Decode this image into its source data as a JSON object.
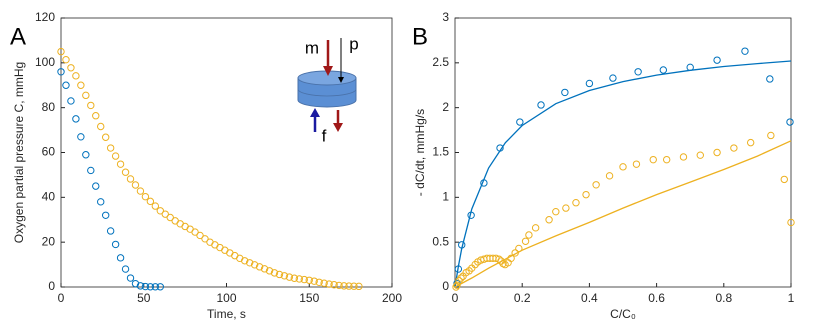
{
  "chart_data": [
    {
      "type": "scatter",
      "panel_label": "A",
      "x_label": "Time, s",
      "y_label": "Oxygen partial pressure C, mmHg",
      "annotations": [
        "m",
        "p",
        "f"
      ],
      "xlim": [
        0,
        200
      ],
      "xticks": [
        0,
        50,
        100,
        150,
        200
      ],
      "ylim": [
        0,
        120
      ],
      "yticks": [
        0,
        20,
        40,
        60,
        80,
        100,
        120
      ],
      "series": [
        {
          "mode": "markers",
          "color": "#0072bd",
          "x": [
            0,
            3,
            6,
            9,
            12,
            15,
            18,
            21,
            24,
            27,
            30,
            33,
            36,
            39,
            42,
            45,
            48,
            51,
            54,
            57,
            60
          ],
          "values": [
            96,
            90,
            83,
            75,
            67,
            59,
            52,
            45,
            38,
            32,
            25,
            19,
            13,
            8,
            4,
            1.5,
            0.5,
            0.2,
            0.1,
            0.1,
            0.1
          ]
        },
        {
          "mode": "markers",
          "color": "#edb120",
          "x": [
            0,
            3,
            6,
            9,
            12,
            15,
            18,
            21,
            24,
            27,
            30,
            33,
            36,
            39,
            42,
            45,
            48,
            51,
            54,
            57,
            60,
            63,
            66,
            69,
            72,
            75,
            78,
            81,
            84,
            87,
            90,
            93,
            96,
            99,
            102,
            105,
            108,
            111,
            114,
            117,
            120,
            123,
            126,
            129,
            132,
            135,
            138,
            141,
            144,
            147,
            150,
            153,
            156,
            159,
            162,
            165,
            168,
            171,
            174,
            177,
            180
          ],
          "values": [
            105,
            101.4,
            97.8,
            94.2,
            90,
            85.5,
            81,
            76.4,
            71.6,
            66.8,
            62,
            58.4,
            54.8,
            51.2,
            48.2,
            45.5,
            42.8,
            40.3,
            38.2,
            36.1,
            34,
            32.5,
            31,
            29.5,
            28.2,
            27,
            25.8,
            24.5,
            23,
            21.5,
            20,
            18.8,
            17.6,
            16.4,
            15.2,
            14,
            12.8,
            11.7,
            10.8,
            9.9,
            9,
            8.1,
            7.2,
            6.3,
            5.6,
            5,
            4.4,
            3.9,
            3.6,
            3.3,
            3,
            2.6,
            2.1,
            1.7,
            1.3,
            1,
            0.7,
            0.5,
            0.4,
            0.35,
            0.3
          ]
        }
      ]
    },
    {
      "type": "scatter",
      "panel_label": "B",
      "x_label": "C/C₀",
      "y_label": "- dC/dt,  mmHg/s",
      "xlim": [
        0,
        1
      ],
      "xticks": [
        0,
        0.2,
        0.4,
        0.6,
        0.8,
        1
      ],
      "ylim": [
        0,
        3
      ],
      "yticks": [
        0,
        0.5,
        1,
        1.5,
        2,
        2.5,
        3
      ],
      "series": [
        {
          "mode": "markers",
          "color": "#0072bd",
          "x": [
            0.006,
            0.01,
            0.02,
            0.048,
            0.086,
            0.134,
            0.193,
            0.256,
            0.327,
            0.4,
            0.47,
            0.545,
            0.62,
            0.7,
            0.78,
            0.863,
            0.937,
            0.997
          ],
          "values": [
            0.04,
            0.2,
            0.47,
            0.8,
            1.16,
            1.55,
            1.84,
            2.03,
            2.17,
            2.27,
            2.33,
            2.4,
            2.42,
            2.45,
            2.53,
            2.63,
            2.32,
            1.84
          ]
        },
        {
          "mode": "line",
          "color": "#0072bd",
          "x": [
            0,
            0.01,
            0.02,
            0.05,
            0.1,
            0.15,
            0.2,
            0.3,
            0.4,
            0.5,
            0.6,
            0.7,
            0.8,
            0.9,
            1
          ],
          "values": [
            0,
            0.231,
            0.427,
            0.87,
            1.327,
            1.609,
            1.801,
            2.044,
            2.192,
            2.291,
            2.363,
            2.417,
            2.459,
            2.492,
            2.52
          ]
        },
        {
          "mode": "markers",
          "color": "#edb120",
          "x": [
            0.003,
            0.006,
            0.012,
            0.018,
            0.024,
            0.033,
            0.042,
            0.05,
            0.06,
            0.068,
            0.077,
            0.086,
            0.095,
            0.104,
            0.113,
            0.122,
            0.131,
            0.137,
            0.143,
            0.149,
            0.158,
            0.167,
            0.179,
            0.19,
            0.21,
            0.22,
            0.24,
            0.28,
            0.3,
            0.33,
            0.36,
            0.39,
            0.42,
            0.46,
            0.5,
            0.54,
            0.59,
            0.63,
            0.68,
            0.73,
            0.78,
            0.83,
            0.88,
            0.94,
            0.98,
            1
          ],
          "values": [
            0,
            0.02,
            0.07,
            0.1,
            0.12,
            0.16,
            0.18,
            0.21,
            0.25,
            0.28,
            0.3,
            0.31,
            0.32,
            0.32,
            0.32,
            0.32,
            0.31,
            0.29,
            0.26,
            0.25,
            0.27,
            0.32,
            0.38,
            0.43,
            0.51,
            0.58,
            0.66,
            0.75,
            0.84,
            0.88,
            0.94,
            1.03,
            1.14,
            1.24,
            1.34,
            1.37,
            1.42,
            1.42,
            1.45,
            1.47,
            1.5,
            1.55,
            1.61,
            1.69,
            1.2,
            0.72
          ]
        },
        {
          "mode": "line",
          "color": "#edb120",
          "x": [
            0,
            0.05,
            0.1,
            0.2,
            0.3,
            0.4,
            0.5,
            0.6,
            0.7,
            0.8,
            0.9,
            1
          ],
          "values": [
            0,
            0.1,
            0.21,
            0.41,
            0.57,
            0.72,
            0.88,
            1.03,
            1.17,
            1.31,
            1.46,
            1.63
          ]
        }
      ]
    }
  ]
}
